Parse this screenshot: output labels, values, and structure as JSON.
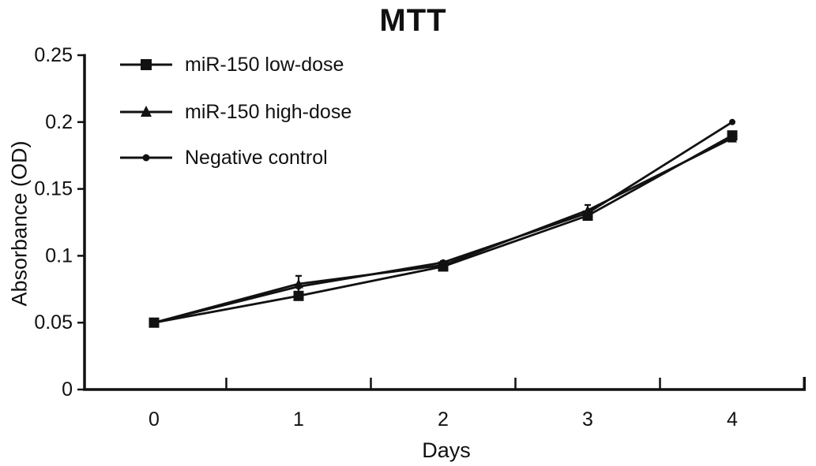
{
  "title": "MTT",
  "axes": {
    "y_label": "Absorbance (OD)",
    "x_label": "Days"
  },
  "legend": {
    "position": "upper-left",
    "items": [
      {
        "label": "miR-150 low-dose",
        "marker": "square"
      },
      {
        "label": "miR-150 high-dose",
        "marker": "triangle"
      },
      {
        "label": "Negative control",
        "marker": "dot"
      }
    ]
  },
  "chart_data": {
    "type": "line",
    "title": "MTT",
    "xlabel": "Days",
    "ylabel": "Absorbance (OD)",
    "x": [
      0,
      1,
      2,
      3,
      4
    ],
    "x_tick_labels": [
      "0",
      "1",
      "2",
      "3",
      "4"
    ],
    "ylim": [
      0,
      0.25
    ],
    "y_tick_values": [
      0,
      0.05,
      0.1,
      0.15,
      0.2,
      0.25
    ],
    "y_tick_labels": [
      "0",
      "0.05",
      "0.1",
      "0.15",
      "0.2",
      "0.25"
    ],
    "grid": false,
    "legend_position": "upper-left",
    "line_color": "#111111",
    "series": [
      {
        "name": "miR-150 low-dose",
        "marker": "square",
        "values": [
          0.05,
          0.07,
          0.092,
          0.13,
          0.19
        ]
      },
      {
        "name": "miR-150 high-dose",
        "marker": "triangle",
        "values": [
          0.05,
          0.079,
          0.093,
          0.134,
          0.188
        ],
        "error": [
          0,
          0.006,
          0.003,
          0.004,
          0
        ]
      },
      {
        "name": "Negative control",
        "marker": "dot",
        "values": [
          0.05,
          0.077,
          0.095,
          0.132,
          0.2
        ]
      }
    ]
  }
}
